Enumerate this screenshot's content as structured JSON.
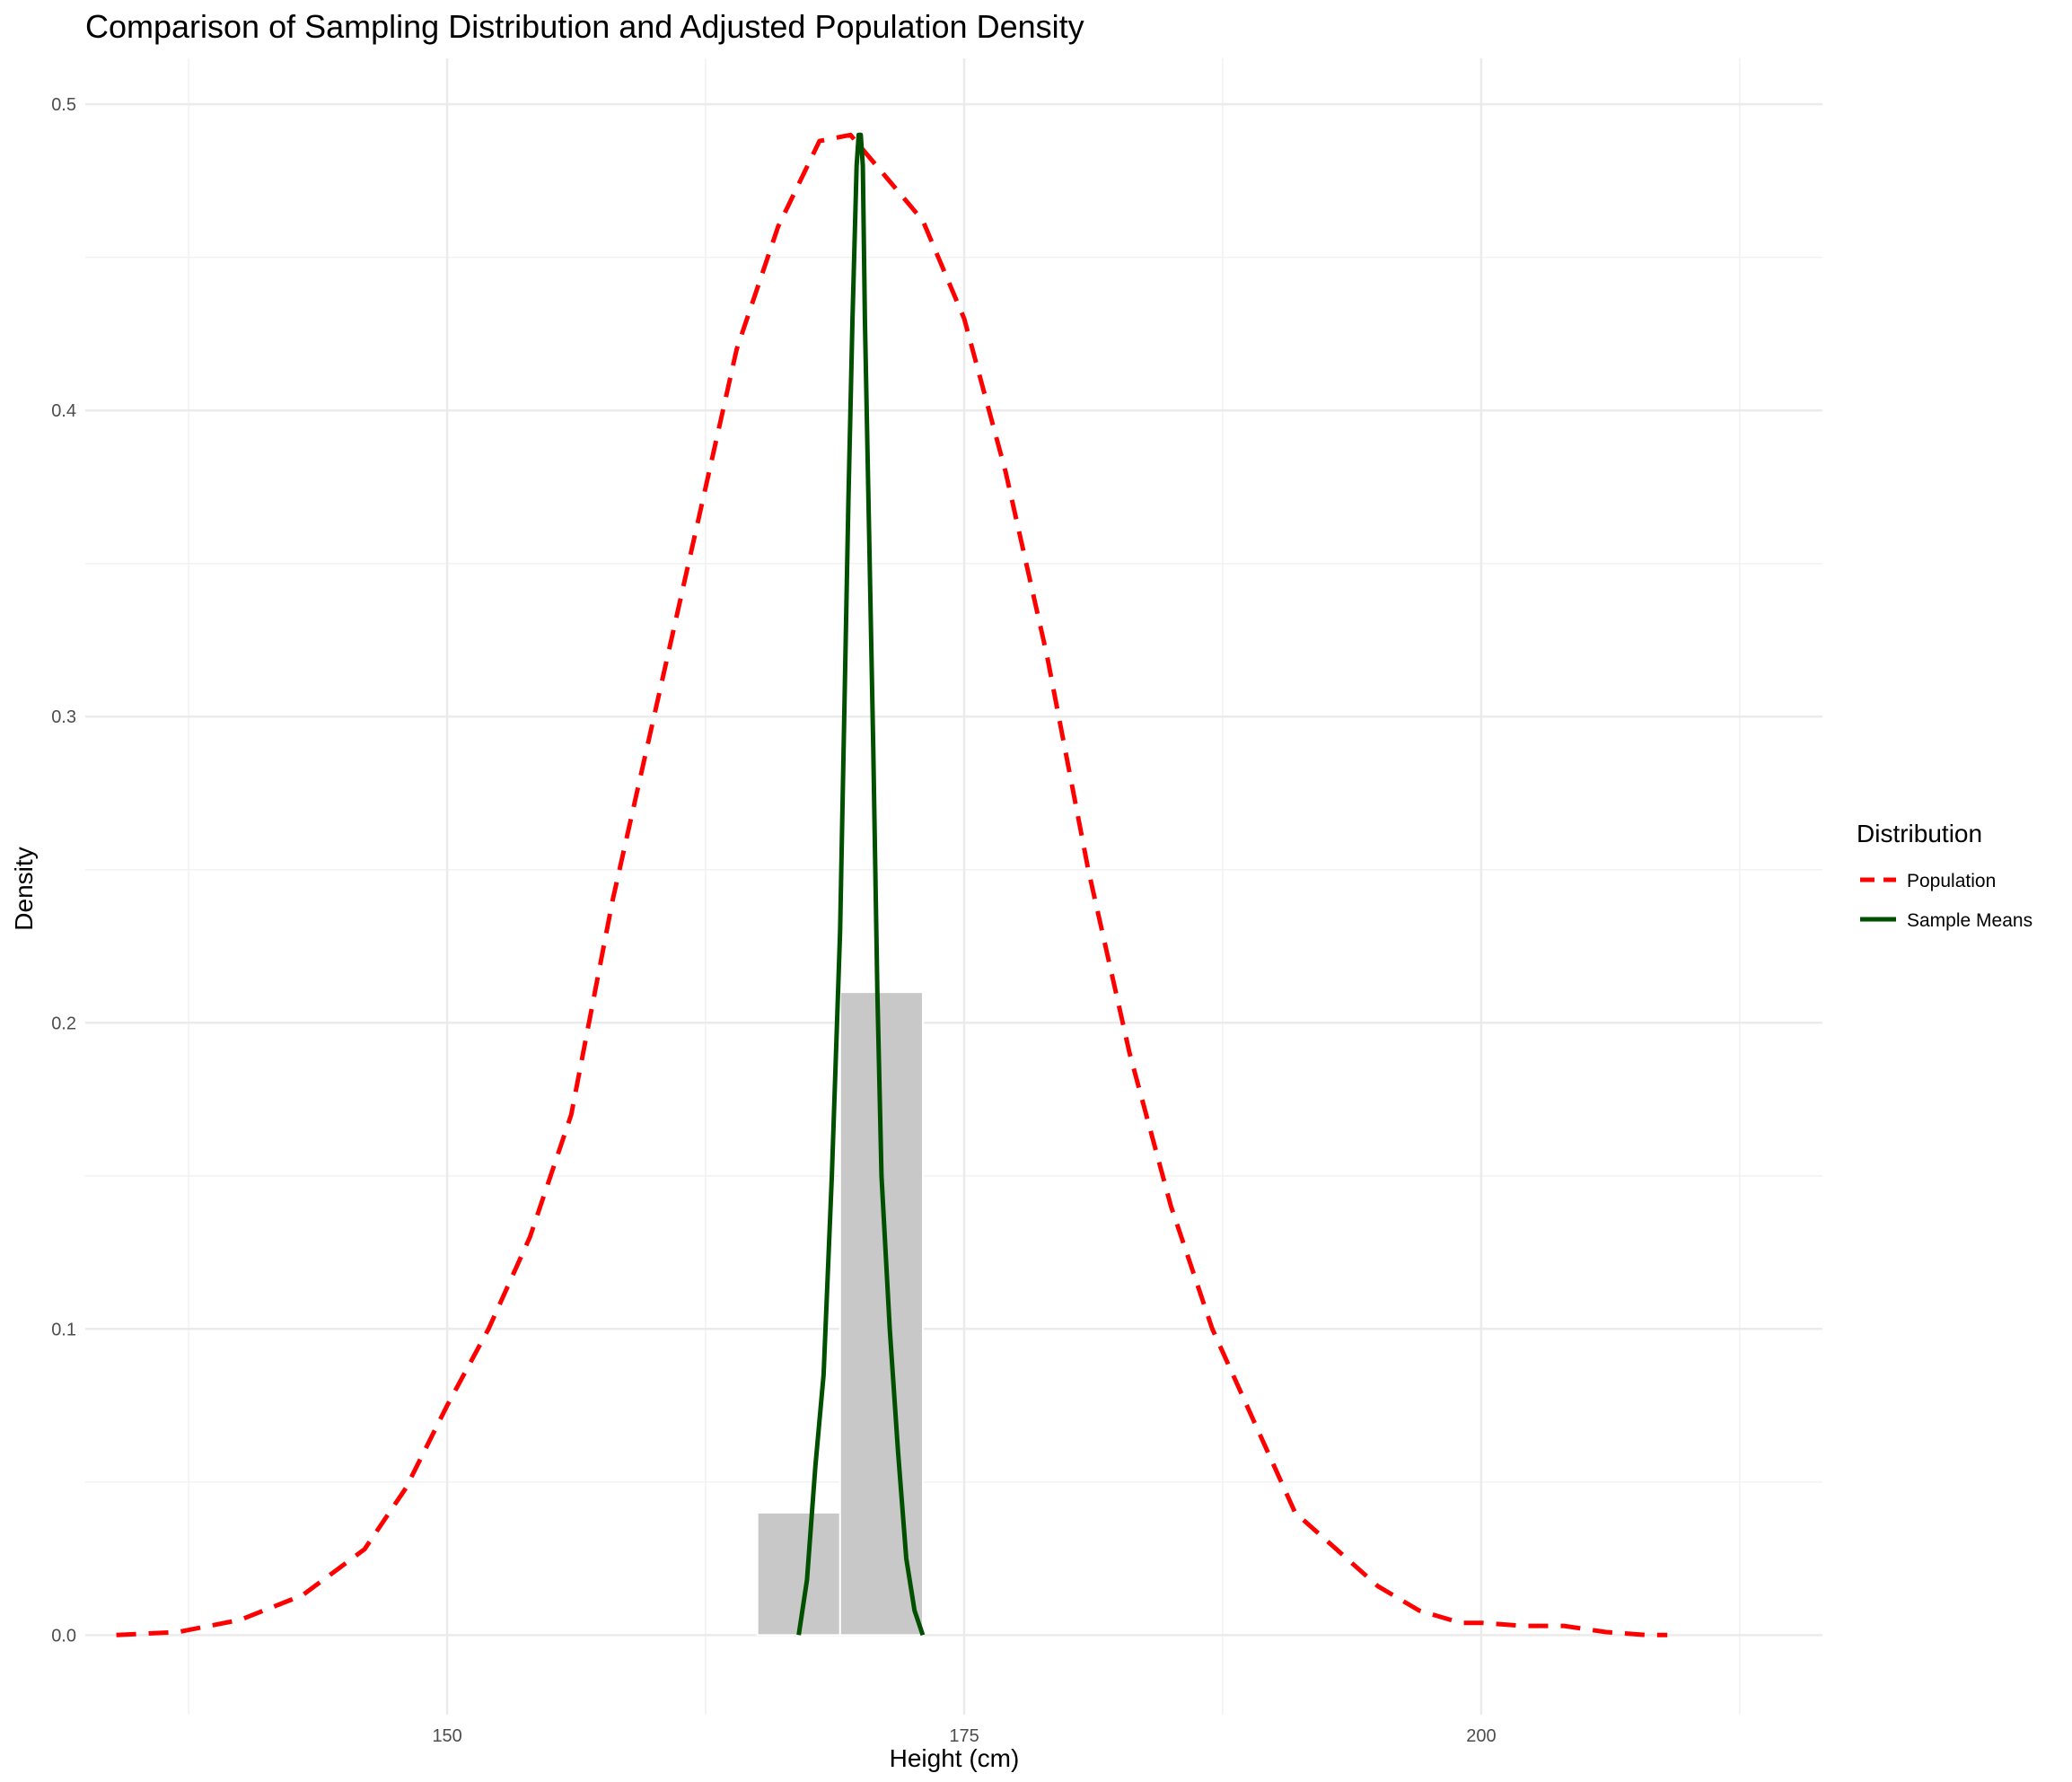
{
  "chart_data": {
    "type": "line",
    "title": "Comparison of Sampling Distribution and Adjusted Population Density",
    "xlabel": "Height (cm)",
    "ylabel": "Density",
    "xlim": [
      132.5,
      216.5
    ],
    "ylim": [
      -0.026,
      0.515
    ],
    "x_ticks": [
      150,
      175,
      200
    ],
    "x_tick_labels": [
      "150",
      "175",
      "200"
    ],
    "y_ticks": [
      0.0,
      0.1,
      0.2,
      0.3,
      0.4,
      0.5
    ],
    "y_tick_labels": [
      "0.0",
      "0.1",
      "0.2",
      "0.3",
      "0.4",
      "0.5"
    ],
    "grid": true,
    "legend": {
      "title": "Distribution",
      "position": "right",
      "entries": [
        {
          "label": "Population",
          "color": "#ff0000",
          "linetype": "dashed"
        },
        {
          "label": "Sample Means",
          "color": "#005000",
          "linetype": "solid"
        }
      ]
    },
    "histogram": {
      "color": "#c8c8c8",
      "bins": [
        {
          "x0": 165.0,
          "x1": 169.0,
          "density": 0.04
        },
        {
          "x0": 169.0,
          "x1": 173.0,
          "density": 0.21
        }
      ]
    },
    "series": [
      {
        "name": "Population",
        "color": "#ff0000",
        "x": [
          134.0,
          137.0,
          140.0,
          143.0,
          146.0,
          148.0,
          150.0,
          152.0,
          154.0,
          156.0,
          158.0,
          160.0,
          162.0,
          164.0,
          166.0,
          168.0,
          169.5,
          171.0,
          173.0,
          175.0,
          177.0,
          179.0,
          181.0,
          183.0,
          185.0,
          187.0,
          189.0,
          191.0,
          193.0,
          195.0,
          197.0,
          199.0,
          200.0,
          202.0,
          204.0,
          206.0,
          208.0,
          209.0
        ],
        "y": [
          0.0,
          0.001,
          0.005,
          0.013,
          0.028,
          0.048,
          0.075,
          0.1,
          0.13,
          0.17,
          0.24,
          0.3,
          0.36,
          0.42,
          0.46,
          0.488,
          0.49,
          0.478,
          0.462,
          0.43,
          0.38,
          0.32,
          0.25,
          0.19,
          0.14,
          0.1,
          0.07,
          0.04,
          0.028,
          0.016,
          0.008,
          0.004,
          0.004,
          0.003,
          0.003,
          0.001,
          0.0,
          0.0
        ]
      },
      {
        "name": "Sample Means",
        "color": "#005000",
        "x": [
          167.0,
          167.4,
          167.8,
          168.2,
          168.6,
          168.8,
          169.0,
          169.2,
          169.4,
          169.6,
          169.8,
          169.9,
          170.0,
          170.1,
          170.2,
          170.4,
          170.6,
          170.8,
          171.0,
          171.4,
          171.8,
          172.2,
          172.6,
          173.0
        ],
        "y": [
          0.0,
          0.018,
          0.055,
          0.085,
          0.15,
          0.19,
          0.23,
          0.3,
          0.37,
          0.43,
          0.48,
          0.49,
          0.49,
          0.48,
          0.43,
          0.36,
          0.29,
          0.21,
          0.15,
          0.1,
          0.06,
          0.025,
          0.008,
          0.0
        ]
      }
    ]
  }
}
